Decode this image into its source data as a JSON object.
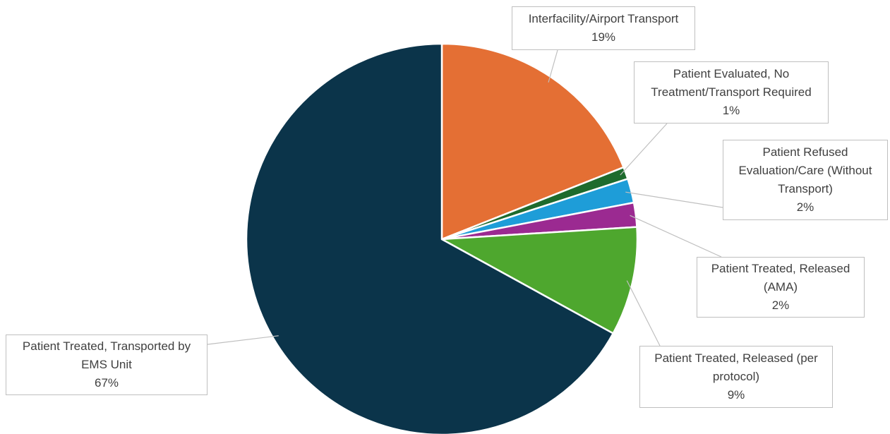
{
  "chart_data": {
    "type": "pie",
    "title": "",
    "start_angle_deg": 0,
    "direction": "clockwise",
    "slices": [
      {
        "label": "Interfacility/Airport Transport",
        "label_lines": [
          "Interfacility/Airport Transport"
        ],
        "value": 19,
        "display": "19%",
        "color": "#E46F34"
      },
      {
        "label": "Patient Evaluated, No Treatment/Transport Required",
        "label_lines": [
          "Patient Evaluated, No",
          "Treatment/Transport Required"
        ],
        "value": 1,
        "display": "1%",
        "color": "#1E6B2D"
      },
      {
        "label": "Patient Refused Evaluation/Care (Without Transport)",
        "label_lines": [
          "Patient Refused",
          "Evaluation/Care (Without",
          "Transport)"
        ],
        "value": 2,
        "display": "2%",
        "color": "#1E9DD8"
      },
      {
        "label": "Patient Treated, Released (AMA)",
        "label_lines": [
          "Patient Treated, Released",
          "(AMA)"
        ],
        "value": 2,
        "display": "2%",
        "color": "#9B2A91"
      },
      {
        "label": "Patient Treated, Released (per protocol)",
        "label_lines": [
          "Patient Treated, Released (per",
          "protocol)"
        ],
        "value": 9,
        "display": "9%",
        "color": "#4EA72E"
      },
      {
        "label": "Patient Treated, Transported by EMS Unit",
        "label_lines": [
          "Patient Treated, Transported by",
          "EMS Unit"
        ],
        "value": 67,
        "display": "67%",
        "color": "#0B344A"
      }
    ]
  }
}
